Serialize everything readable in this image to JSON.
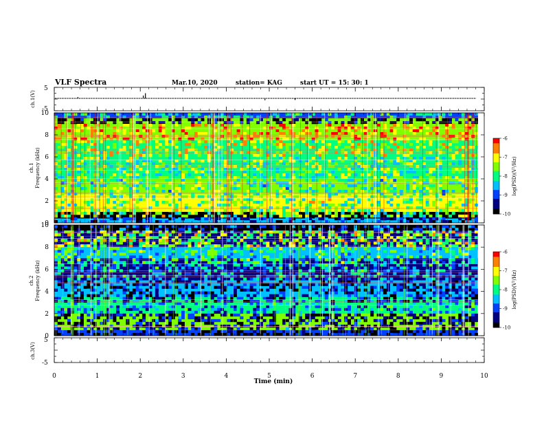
{
  "header": {
    "title": "VLF Spectra",
    "date": "Mar.10, 2020",
    "station": "station= KAG",
    "start_ut": "start  UT =   15: 30: 1"
  },
  "panels": {
    "ch1_wave": {
      "ylabel": "ch.1(V)",
      "ymax_label": "5",
      "ymin_label": "-5"
    },
    "ch1_spec": {
      "ylabel_line1": "ch.1",
      "ylabel_line2": "Frequency  (kHz)"
    },
    "ch2_spec": {
      "ylabel_line1": "ch.2",
      "ylabel_line2": "Frequency  (kHz)"
    },
    "ch3_wave": {
      "ylabel": "ch.3(V)",
      "ymax_label": "5",
      "ymin_label": "-5"
    }
  },
  "colorbar": {
    "label": "log(PSD)(V²/Hz)",
    "ticks": [
      "-6",
      "-7",
      "-8",
      "-9",
      "-10"
    ],
    "colors": [
      "#ff0000",
      "#ff8000",
      "#ffff00",
      "#80ff00",
      "#00ff80",
      "#00c0ff",
      "#0040ff",
      "#000080",
      "#000000"
    ]
  },
  "chart_data": [
    {
      "type": "line",
      "name": "ch.1 waveform",
      "ylabel": "ch.1(V)",
      "ylim": [
        -5,
        5
      ],
      "xlim": [
        0,
        10
      ],
      "spikes": [
        {
          "x": 0.55,
          "y": 0.6
        },
        {
          "x": 2.07,
          "y": 1.2
        },
        {
          "x": 2.12,
          "y": 2.2
        },
        {
          "x": 4.9,
          "y": -0.8
        },
        {
          "x": 5.6,
          "y": -0.7
        }
      ]
    },
    {
      "type": "heatmap",
      "name": "ch.1 spectrogram",
      "xlabel": "Time  (min)",
      "ylabel": "Frequency  (kHz)",
      "xlim": [
        0,
        9.85
      ],
      "ylim": [
        0,
        10
      ],
      "yticks": [
        "0",
        "2",
        "4",
        "6",
        "8",
        "10"
      ],
      "color_scale": [
        -10,
        -6
      ],
      "bands_kHz": [
        {
          "f0": 0.0,
          "f1": 0.4,
          "level": -8.4
        },
        {
          "f0": 0.4,
          "f1": 1.0,
          "level": -10.0
        },
        {
          "f0": 1.0,
          "f1": 2.6,
          "level": -6.8
        },
        {
          "f0": 2.6,
          "f1": 4.0,
          "level": -7.4
        },
        {
          "f0": 4.0,
          "f1": 6.0,
          "level": -7.8
        },
        {
          "f0": 6.0,
          "f1": 7.5,
          "level": -7.9
        },
        {
          "f0": 7.5,
          "f1": 9.5,
          "level": -7.6
        },
        {
          "f0": 9.5,
          "f1": 10.0,
          "level": -9.2
        }
      ]
    },
    {
      "type": "heatmap",
      "name": "ch.2 spectrogram",
      "xlabel": "Time  (min)",
      "ylabel": "Frequency  (kHz)",
      "xlim": [
        0,
        9.85
      ],
      "ylim": [
        0,
        10
      ],
      "yticks": [
        "0",
        "2",
        "4",
        "6",
        "8",
        "10"
      ],
      "color_scale": [
        -10,
        -6
      ],
      "bands_kHz": [
        {
          "f0": 0.0,
          "f1": 0.5,
          "level": -9.2
        },
        {
          "f0": 0.5,
          "f1": 2.0,
          "level": -7.4
        },
        {
          "f0": 2.0,
          "f1": 3.5,
          "level": -8.1
        },
        {
          "f0": 3.5,
          "f1": 5.0,
          "level": -8.6
        },
        {
          "f0": 5.0,
          "f1": 7.0,
          "level": -9.4
        },
        {
          "f0": 7.0,
          "f1": 8.0,
          "level": -8.6
        },
        {
          "f0": 8.0,
          "f1": 9.5,
          "level": -9.6
        },
        {
          "f0": 9.5,
          "f1": 10.0,
          "level": -10.0
        }
      ]
    },
    {
      "type": "line",
      "name": "ch.3 waveform",
      "ylabel": "ch.3(V)",
      "ylim": [
        -5,
        5
      ],
      "xlim": [
        0,
        10
      ],
      "spikes": []
    }
  ],
  "xaxis": {
    "label": "Time  (min)",
    "ticks": [
      "0",
      "1",
      "2",
      "3",
      "4",
      "5",
      "6",
      "7",
      "8",
      "9",
      "10"
    ]
  }
}
